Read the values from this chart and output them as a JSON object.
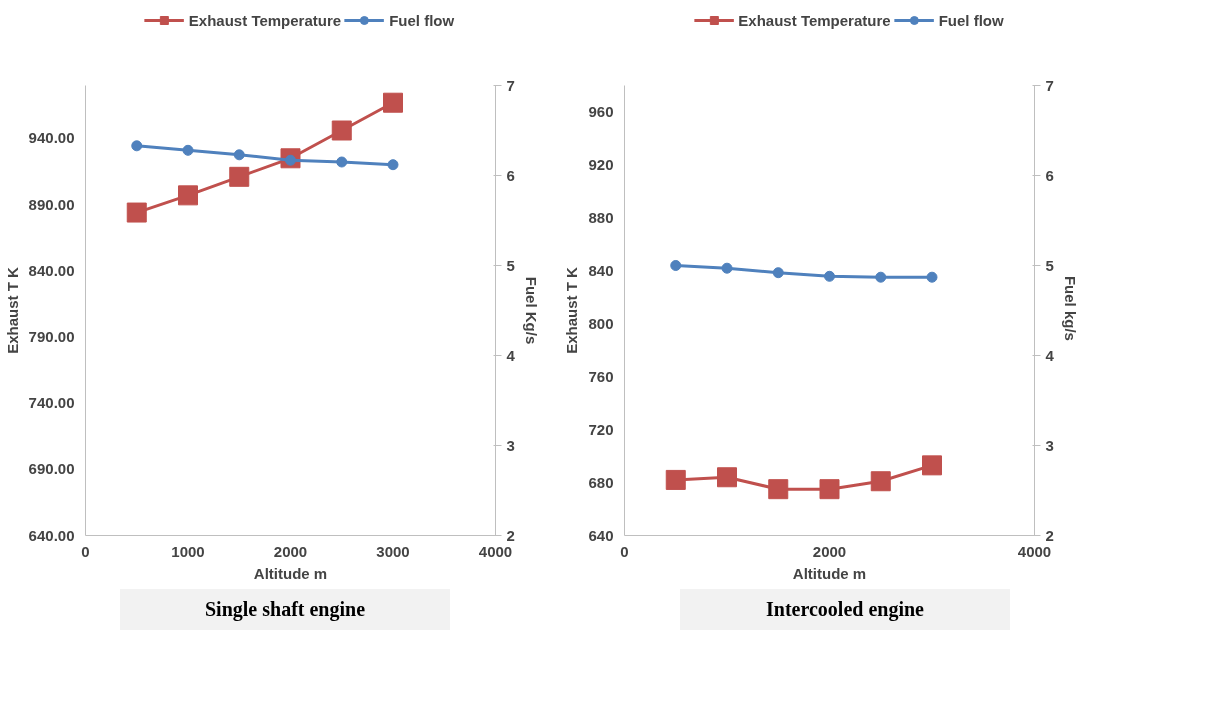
{
  "chart_data": [
    {
      "type": "line",
      "xlabel": "Altitude m",
      "ylabel": "Exhaust T K",
      "y2label": "Fuel Kg/s",
      "annotations": [
        "Single shaft engine"
      ],
      "x": [
        500,
        1000,
        1500,
        2000,
        2500,
        3000
      ],
      "xlim": [
        0,
        4000
      ],
      "xticks": [
        0,
        1000,
        2000,
        3000,
        4000
      ],
      "ylim": [
        640,
        980
      ],
      "yticks": [
        {
          "value": 640,
          "label": "640.00"
        },
        {
          "value": 690,
          "label": "690.00"
        },
        {
          "value": 740,
          "label": "740.00"
        },
        {
          "value": 790,
          "label": "790.00"
        },
        {
          "value": 840,
          "label": "840.00"
        },
        {
          "value": 890,
          "label": "890.00"
        },
        {
          "value": 940,
          "label": "940.00"
        }
      ],
      "y2lim": [
        2,
        7
      ],
      "y2ticks": [
        2,
        3,
        4,
        5,
        6,
        7
      ],
      "grid": false,
      "legend": "top",
      "series": [
        {
          "name": "Exhaust Temperature",
          "color": "#c0504d",
          "marker": "square",
          "values": [
            884,
            897,
            911,
            925,
            946,
            967
          ]
        },
        {
          "name": "Fuel flow",
          "color": "#4f81bd",
          "marker": "circle",
          "axis": "y2",
          "values": [
            6.33,
            6.28,
            6.23,
            6.17,
            6.15,
            6.12
          ]
        }
      ]
    },
    {
      "type": "line",
      "xlabel": "Altitude m",
      "ylabel": "Exhaust T K",
      "y2label": "Fuel  kg/s",
      "annotations": [
        "Intercooled engine"
      ],
      "x": [
        500,
        1000,
        1500,
        2000,
        2500,
        3000
      ],
      "xlim": [
        0,
        4000
      ],
      "xticks": [
        0,
        2000,
        4000
      ],
      "ylim": [
        640,
        980
      ],
      "yticks": [
        640,
        680,
        720,
        760,
        800,
        840,
        880,
        920,
        960
      ],
      "y2lim": [
        2,
        7
      ],
      "y2ticks": [
        2,
        3,
        4,
        5,
        6,
        7
      ],
      "grid": false,
      "legend": "top",
      "series": [
        {
          "name": "Exhaust Temperature",
          "color": "#c0504d",
          "marker": "square",
          "values": [
            682,
            684,
            675,
            675,
            681,
            693
          ]
        },
        {
          "name": "Fuel flow",
          "color": "#4f81bd",
          "marker": "circle",
          "axis": "y2",
          "values": [
            5.0,
            4.97,
            4.92,
            4.88,
            4.87,
            4.87
          ]
        }
      ]
    }
  ]
}
